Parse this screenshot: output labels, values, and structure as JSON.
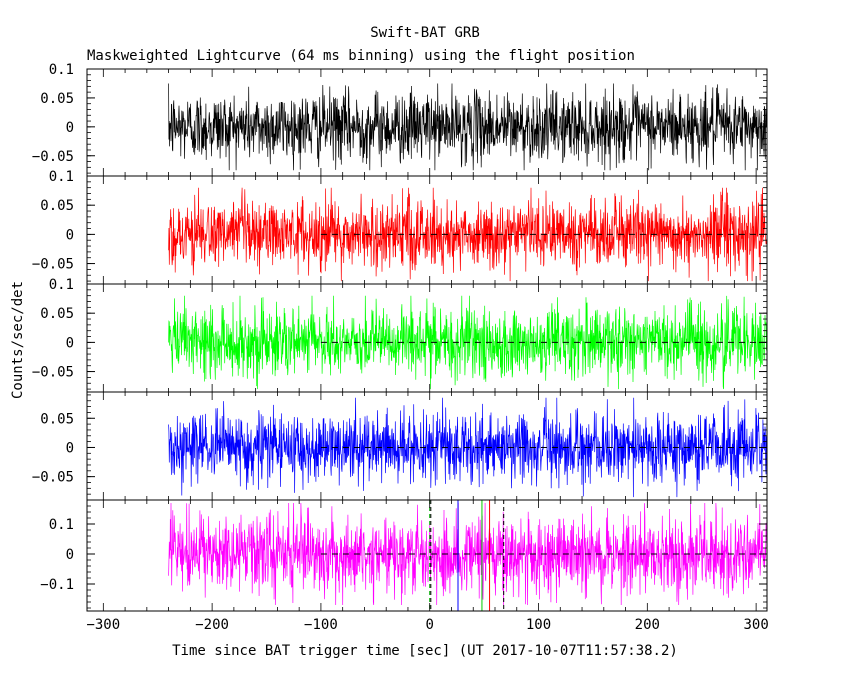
{
  "figure": {
    "title": "Swift-BAT GRB",
    "subtitle": "Maskweighted Lightcurve (64 ms binning) using the flight position",
    "xlabel": "Time since BAT trigger time [sec] (UT 2017-10-07T11:57:38.2)",
    "ylabel": "Counts/sec/det"
  },
  "chart_data": [
    {
      "type": "line",
      "panel": 1,
      "color": "#000000",
      "legend": "",
      "xlim": [
        -315,
        310
      ],
      "ylim": [
        -0.085,
        0.1
      ],
      "yticks": [
        0.1,
        0.05,
        0,
        -0.05
      ],
      "yticklabels": [
        "0.1",
        "0.05",
        "0",
        "−0.05"
      ],
      "x_start": -240,
      "x_end": 310,
      "amplitude": 0.03,
      "max_abs": 0.075,
      "zero_line": false
    },
    {
      "type": "line",
      "panel": 2,
      "color": "#ff0000",
      "legend": "",
      "xlim": [
        -315,
        310
      ],
      "ylim": [
        -0.085,
        0.1
      ],
      "yticks": [
        0.1,
        0.05,
        0,
        -0.05
      ],
      "yticklabels": [
        "0.1",
        "0.05",
        "0",
        "−0.05"
      ],
      "x_start": -240,
      "x_end": 310,
      "amplitude": 0.03,
      "max_abs": 0.08,
      "zero_line": true
    },
    {
      "type": "line",
      "panel": 3,
      "color": "#00ff00",
      "legend": "",
      "xlim": [
        -315,
        310
      ],
      "ylim": [
        -0.085,
        0.1
      ],
      "yticks": [
        0.1,
        0.05,
        0,
        -0.05
      ],
      "yticklabels": [
        "0.1",
        "0.05",
        "0",
        "−0.05"
      ],
      "x_start": -240,
      "x_end": 310,
      "amplitude": 0.03,
      "max_abs": 0.08,
      "zero_line": true
    },
    {
      "type": "line",
      "panel": 4,
      "color": "#0000ff",
      "legend": "",
      "xlim": [
        -315,
        310
      ],
      "ylim": [
        -0.09,
        0.095
      ],
      "yticks": [
        0.05,
        0,
        -0.05
      ],
      "yticklabels": [
        "0.05",
        "0",
        "−0.05"
      ],
      "x_start": -240,
      "x_end": 310,
      "amplitude": 0.03,
      "max_abs": 0.085,
      "zero_line": true
    },
    {
      "type": "line",
      "panel": 5,
      "color": "#ff00ff",
      "legend": "",
      "xlim": [
        -315,
        310
      ],
      "ylim": [
        -0.19,
        0.18
      ],
      "yticks": [
        0.1,
        0,
        -0.1
      ],
      "yticklabels": [
        "0.1",
        "0",
        "−0.1"
      ],
      "x_start": -240,
      "x_end": 310,
      "amplitude": 0.065,
      "max_abs": 0.17,
      "zero_line": true,
      "markers": [
        {
          "x": 0,
          "color": "#00aa00",
          "dash": "4,3"
        },
        {
          "x": 1,
          "color": "#000000",
          "dash": "4,3"
        },
        {
          "x": 26,
          "color": "#0000ff",
          "dash": ""
        },
        {
          "x": 48,
          "color": "#00cc00",
          "dash": ""
        },
        {
          "x": 55,
          "color": "#ff0000",
          "dash": ""
        },
        {
          "x": 68,
          "color": "#000000",
          "dash": "4,3"
        }
      ]
    }
  ],
  "x_axis": {
    "ticks": [
      -300,
      -200,
      -100,
      0,
      100,
      200,
      300
    ],
    "ticklabels": [
      "−300",
      "−200",
      "−100",
      "0",
      "100",
      "200",
      "300"
    ],
    "minor_step": 20
  }
}
